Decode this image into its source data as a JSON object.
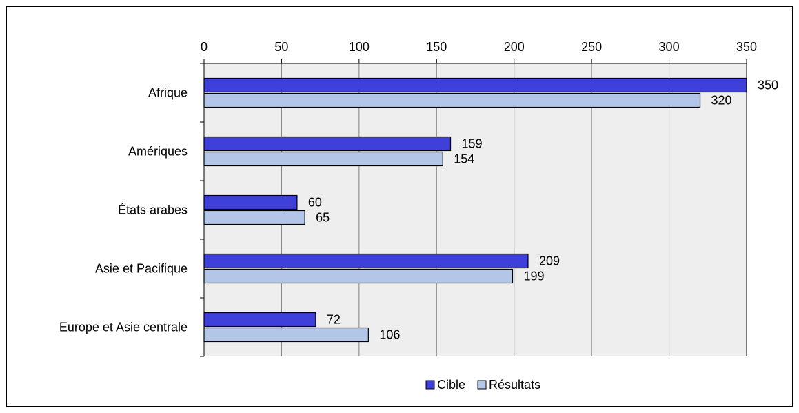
{
  "chart_data": {
    "type": "bar",
    "orientation": "horizontal",
    "title": "",
    "xlabel": "",
    "ylabel": "",
    "categories": [
      "Afrique",
      "Amériques",
      "États arabes",
      "Asie et Pacifique",
      "Europe et Asie centrale"
    ],
    "series": [
      {
        "name": "Cible",
        "values": [
          350,
          159,
          60,
          209,
          72
        ],
        "color": "#3f3fd9"
      },
      {
        "name": "Résultats",
        "values": [
          320,
          154,
          65,
          199,
          106
        ],
        "color": "#b4c6e7"
      }
    ],
    "xlim": [
      0,
      350
    ],
    "ticks": [
      0,
      50,
      100,
      150,
      200,
      250,
      300,
      350
    ],
    "tick_labels": [
      "0",
      "50",
      "100",
      "150",
      "200",
      "250",
      "300",
      "350"
    ],
    "axis_position": "top",
    "grid": true,
    "plot_background": "#eeeeee",
    "legend_position": "bottom",
    "data_labels": true
  }
}
